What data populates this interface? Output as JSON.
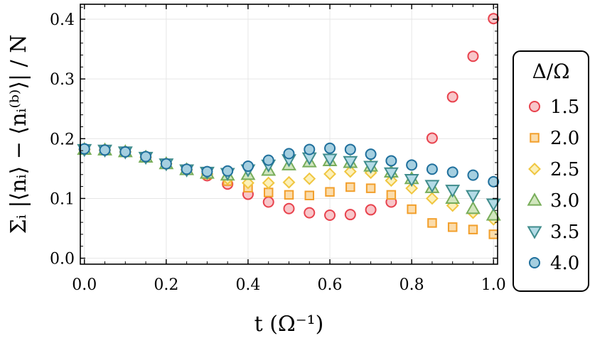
{
  "chart_data": {
    "type": "scatter",
    "xlabel": "t (Ω⁻¹)",
    "ylabel": "Σᵢ |⟨nᵢ⟩ − ⟨nᵢ⁽ᵇ⁾⟩| / N",
    "xlim": [
      -0.01,
      1.01
    ],
    "ylim": [
      -0.01,
      0.425
    ],
    "xticks": [
      "0.0",
      "0.2",
      "0.4",
      "0.6",
      "0.8",
      "1.0"
    ],
    "yticks": [
      "0.0",
      "0.1",
      "0.2",
      "0.3",
      "0.4"
    ],
    "grid": true,
    "legend_title": "Δ/Ω",
    "legend_position": "right",
    "x": [
      0.0,
      0.05,
      0.1,
      0.15,
      0.2,
      0.25,
      0.3,
      0.35,
      0.4,
      0.45,
      0.5,
      0.55,
      0.6,
      0.65,
      0.7,
      0.75,
      0.8,
      0.85,
      0.9,
      0.95,
      1.0
    ],
    "series": [
      {
        "name": "1.5",
        "marker": "circle",
        "stroke": "#e8424d",
        "fill": "#f8c6c9",
        "values": [
          0.182,
          0.181,
          0.178,
          0.169,
          0.158,
          0.148,
          0.138,
          0.124,
          0.107,
          0.094,
          0.083,
          0.076,
          0.072,
          0.073,
          0.081,
          0.094,
          null,
          0.201,
          0.27,
          0.338,
          0.401
        ]
      },
      {
        "name": "2.0",
        "marker": "square",
        "stroke": "#f29f2b",
        "fill": "#fbdcab",
        "values": [
          0.182,
          0.181,
          0.178,
          0.169,
          0.158,
          0.148,
          0.14,
          0.129,
          0.118,
          0.11,
          0.106,
          0.105,
          0.111,
          0.119,
          0.117,
          0.106,
          0.082,
          0.059,
          0.052,
          0.048,
          0.04
        ]
      },
      {
        "name": "2.5",
        "marker": "diamond",
        "stroke": "#f0c640",
        "fill": "#fcf0b8",
        "values": [
          0.182,
          0.181,
          0.178,
          0.169,
          0.158,
          0.148,
          0.141,
          0.133,
          0.126,
          0.126,
          0.127,
          0.133,
          0.141,
          0.145,
          0.143,
          0.13,
          0.117,
          0.1,
          0.088,
          0.076,
          0.065
        ]
      },
      {
        "name": "3.0",
        "marker": "triangle-up",
        "stroke": "#78ad5a",
        "fill": "#d1e6be",
        "values": [
          0.182,
          0.181,
          0.178,
          0.169,
          0.158,
          0.148,
          0.142,
          0.139,
          0.14,
          0.147,
          0.156,
          0.161,
          0.163,
          0.16,
          0.154,
          0.144,
          0.133,
          0.118,
          0.1,
          0.083,
          0.072
        ]
      },
      {
        "name": "3.5",
        "marker": "triangle-down",
        "stroke": "#3f8c8c",
        "fill": "#b3dbe6",
        "values": [
          0.182,
          0.181,
          0.178,
          0.169,
          0.158,
          0.148,
          0.144,
          0.142,
          0.148,
          0.156,
          0.165,
          0.168,
          0.166,
          0.162,
          0.154,
          0.143,
          0.132,
          0.122,
          0.114,
          0.105,
          0.091
        ]
      },
      {
        "name": "4.0",
        "marker": "circle",
        "stroke": "#1f6f9c",
        "fill": "#a5cfe0",
        "values": [
          0.183,
          0.181,
          0.178,
          0.17,
          0.158,
          0.149,
          0.145,
          0.146,
          0.154,
          0.164,
          0.175,
          0.182,
          0.184,
          0.182,
          0.174,
          0.163,
          0.156,
          0.149,
          0.144,
          0.139,
          0.128
        ]
      }
    ]
  }
}
